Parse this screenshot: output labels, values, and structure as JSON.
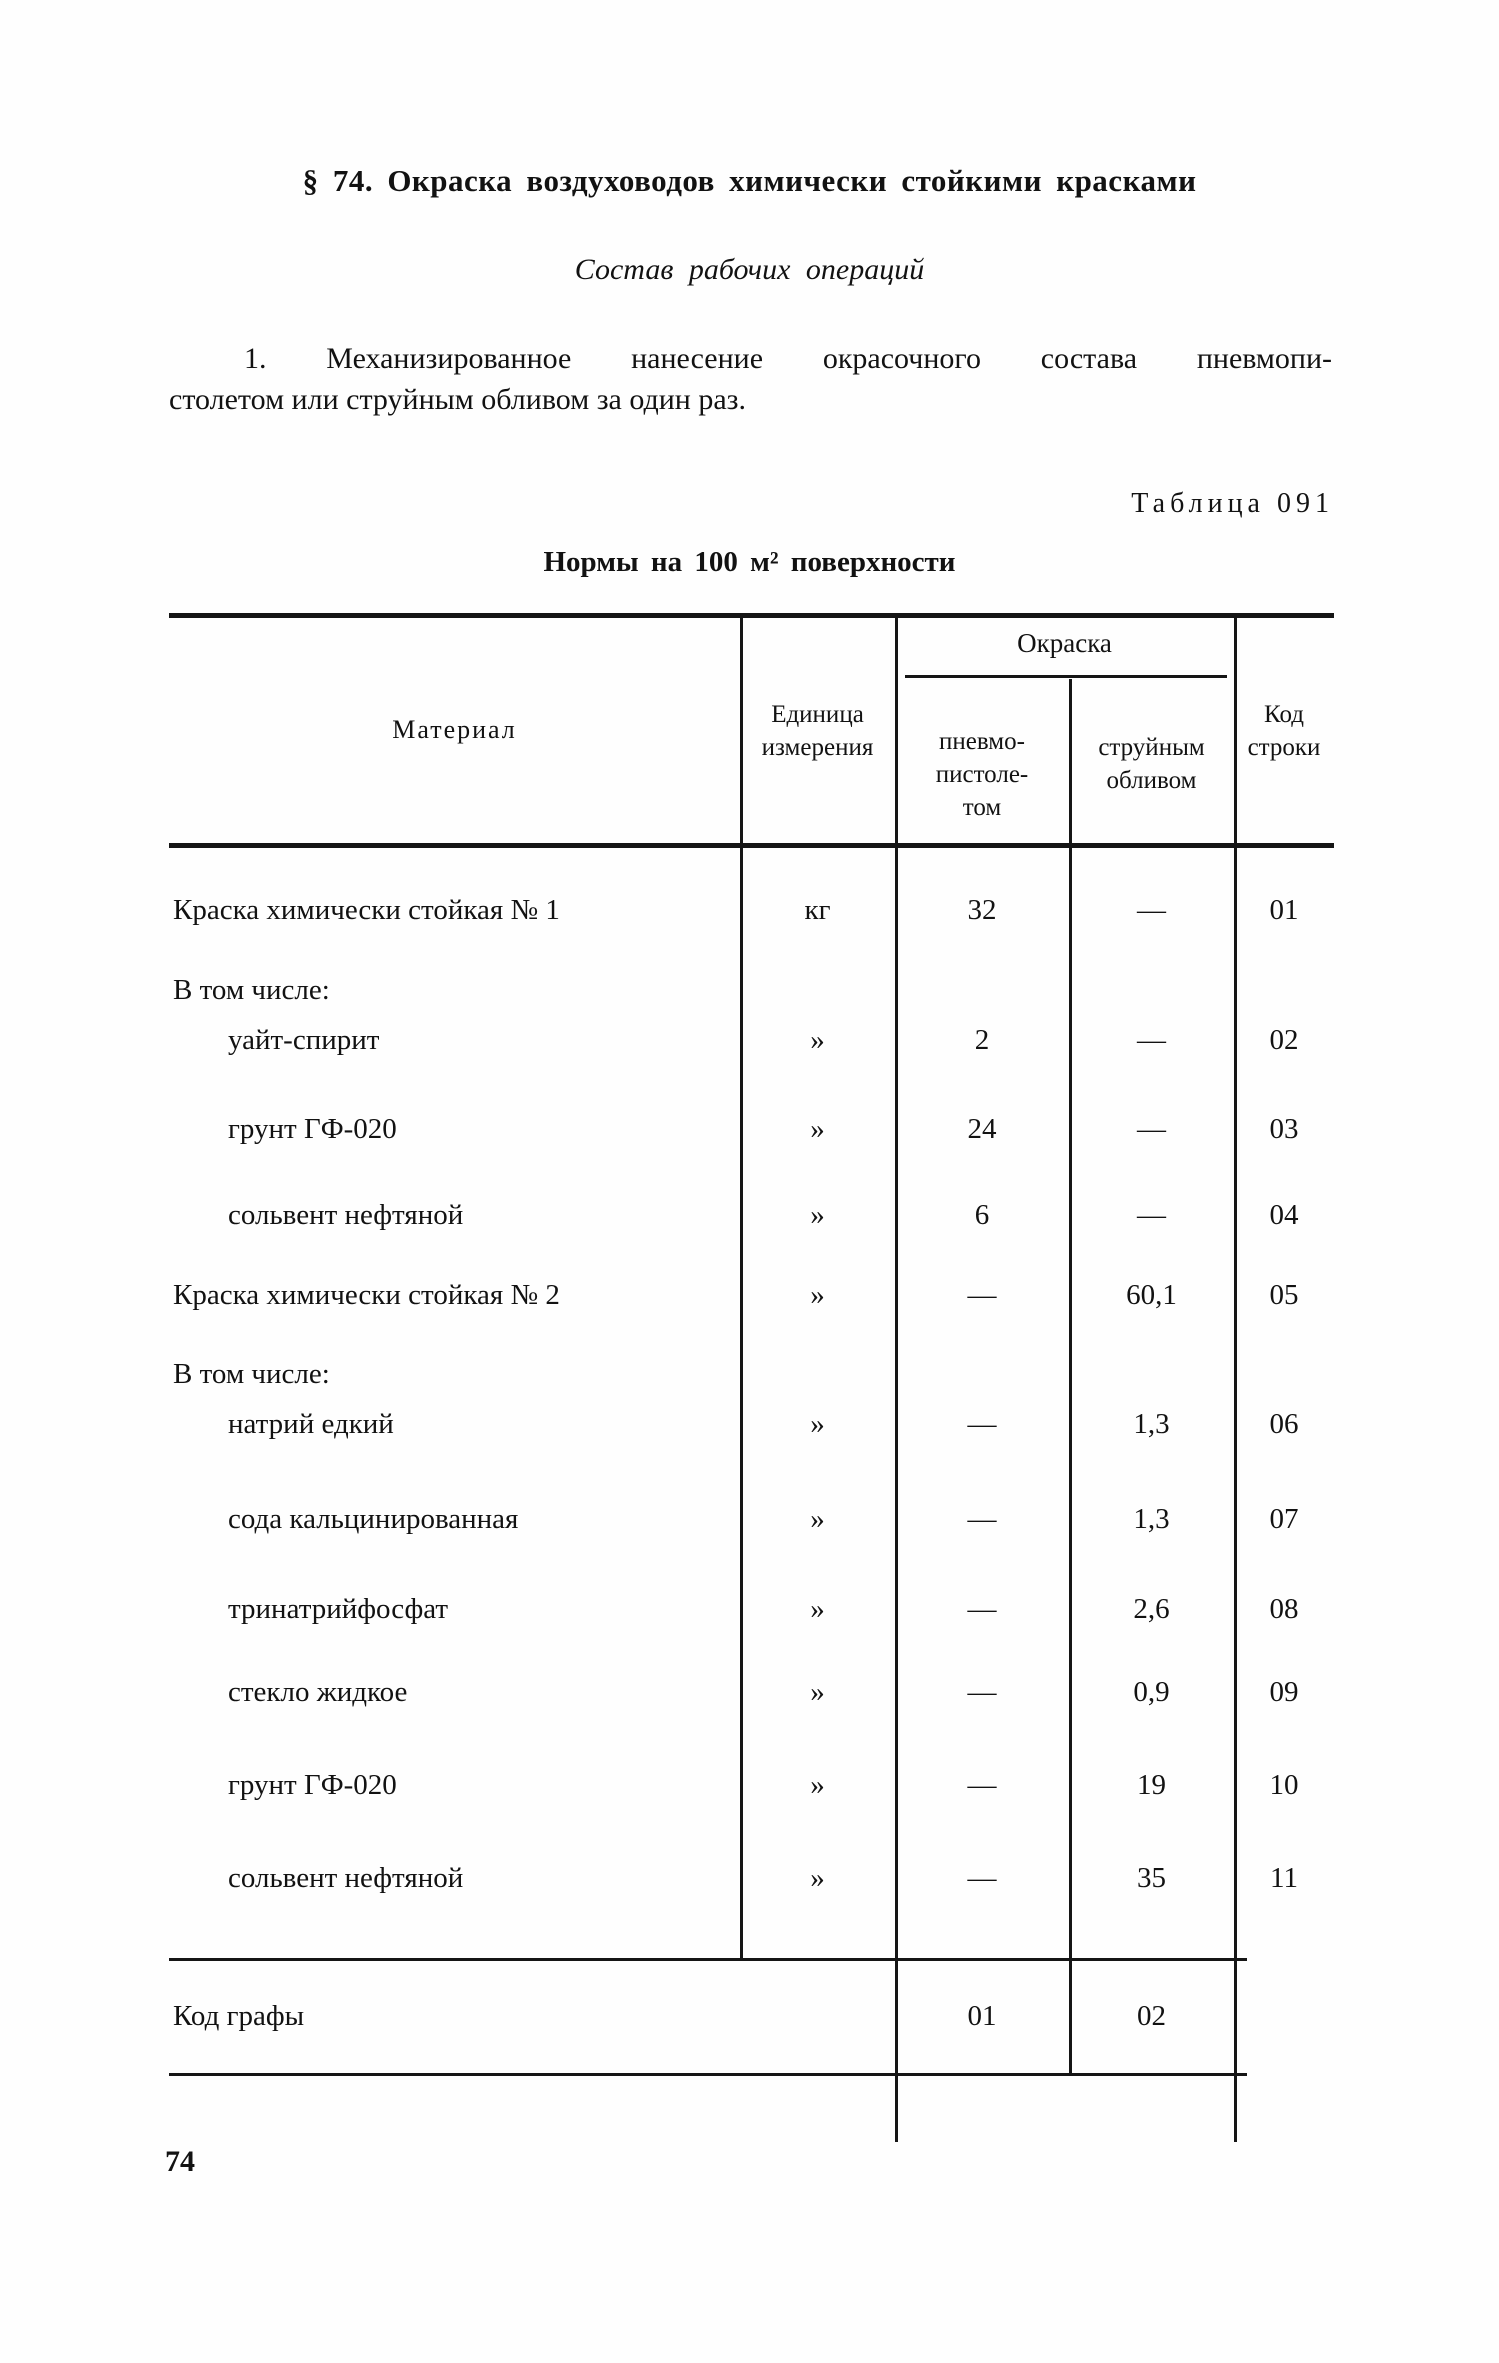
{
  "page": {
    "section_title": "§ 74. Окраска воздуховодов химически стойкими красками",
    "subtitle": "Состав рабочих операций",
    "paragraph_line1": "1. Механизированное нанесение окрасочного состава пневмопи-",
    "paragraph_line2": "столетом или струйным обливом за один раз.",
    "table_label": "Таблица 091",
    "table_title": "Нормы на 100 м² поверхности",
    "page_number": "74"
  },
  "table": {
    "headers": {
      "material": "Материал",
      "unit_line1": "Единица",
      "unit_line2": "измерения",
      "group": "Окраска",
      "pnevmo_line1": "пневмо-",
      "pnevmo_line2": "пистоле-",
      "pnevmo_line3": "том",
      "strui_line1": "струйным",
      "strui_line2": "обливом",
      "code_line1": "Код",
      "code_line2": "строки"
    },
    "rows": [
      {
        "material": "Краска химически стойкая № 1",
        "unit": "кг",
        "pnevmo": "32",
        "strui": "—",
        "code": "01"
      },
      {
        "material": "В том числе:",
        "unit": "",
        "pnevmo": "",
        "strui": "",
        "code": "",
        "label": true
      },
      {
        "material": "уайт-спирит",
        "unit": "»",
        "pnevmo": "2",
        "strui": "—",
        "code": "02",
        "indent": true
      },
      {
        "material": "грунт ГФ-020",
        "unit": "»",
        "pnevmo": "24",
        "strui": "—",
        "code": "03",
        "indent": true
      },
      {
        "material": "сольвент нефтяной",
        "unit": "»",
        "pnevmo": "6",
        "strui": "—",
        "code": "04",
        "indent": true
      },
      {
        "material": "Краска химически стойкая № 2",
        "unit": "»",
        "pnevmo": "—",
        "strui": "60,1",
        "code": "05"
      },
      {
        "material": "В том числе:",
        "unit": "",
        "pnevmo": "",
        "strui": "",
        "code": "",
        "label": true
      },
      {
        "material": "натрий едкий",
        "unit": "»",
        "pnevmo": "—",
        "strui": "1,3",
        "code": "06",
        "indent": true
      },
      {
        "material": "сода кальцинированная",
        "unit": "»",
        "pnevmo": "—",
        "strui": "1,3",
        "code": "07",
        "indent": true
      },
      {
        "material": "тринатрийфосфат",
        "unit": "»",
        "pnevmo": "—",
        "strui": "2,6",
        "code": "08",
        "indent": true
      },
      {
        "material": "стекло жидкое",
        "unit": "»",
        "pnevmo": "—",
        "strui": "0,9",
        "code": "09",
        "indent": true
      },
      {
        "material": "грунт ГФ-020",
        "unit": "»",
        "pnevmo": "—",
        "strui": "19",
        "code": "10",
        "indent": true
      },
      {
        "material": "сольвент нефтяной",
        "unit": "»",
        "pnevmo": "—",
        "strui": "35",
        "code": "11",
        "indent": true
      }
    ],
    "footer": {
      "label": "Код графы",
      "col1": "01",
      "col2": "02"
    }
  }
}
